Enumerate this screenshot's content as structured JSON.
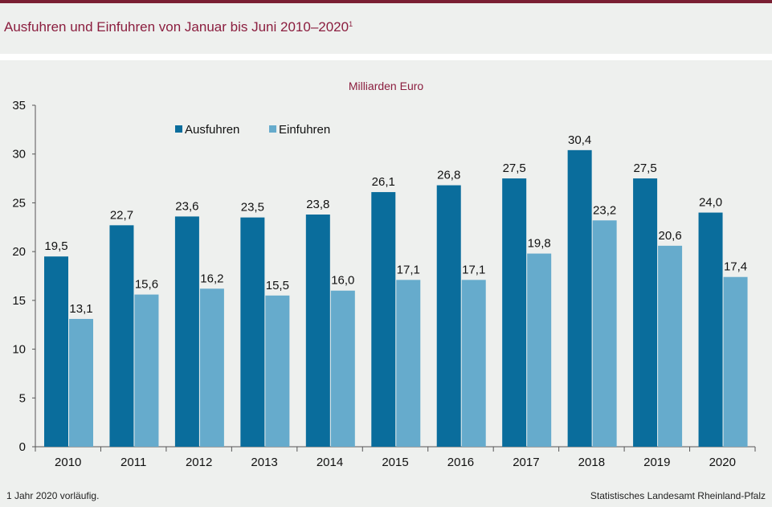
{
  "title": {
    "text": "Ausfuhren und Einfuhren von Januar bis Juni 2010–2020",
    "footnote_marker": "1"
  },
  "colors": {
    "accent": "#8b1e3f",
    "ausfuhren": "#0a6d9c",
    "einfuhren": "#66abcc"
  },
  "footer": {
    "note": "1 Jahr  2020 vorläufig.",
    "source": "Statistisches Landesamt Rheinland-Pfalz"
  },
  "chart_data": {
    "type": "bar",
    "ylabel": "Milliarden Euro",
    "ylim": [
      0,
      35
    ],
    "yticks": [
      0,
      5,
      10,
      15,
      20,
      25,
      30,
      35
    ],
    "grid": false,
    "legend_position": "top-left",
    "categories": [
      "2010",
      "2011",
      "2012",
      "2013",
      "2014",
      "2015",
      "2016",
      "2017",
      "2018",
      "2019",
      "2020"
    ],
    "series": [
      {
        "name": "Ausfuhren",
        "values": [
          19.5,
          22.7,
          23.6,
          23.5,
          23.8,
          26.1,
          26.8,
          27.5,
          30.4,
          27.5,
          24.0
        ],
        "labels": [
          "19,5",
          "22,7",
          "23,6",
          "23,5",
          "23,8",
          "26,1",
          "26,8",
          "27,5",
          "30,4",
          "27,5",
          "24,0"
        ]
      },
      {
        "name": "Einfuhren",
        "values": [
          13.1,
          15.6,
          16.2,
          15.5,
          16.0,
          17.1,
          17.1,
          19.8,
          23.2,
          20.6,
          17.4
        ],
        "labels": [
          "13,1",
          "15,6",
          "16,2",
          "15,5",
          "16,0",
          "17,1",
          "17,1",
          "19,8",
          "23,2",
          "20,6",
          "17,4"
        ]
      }
    ]
  }
}
